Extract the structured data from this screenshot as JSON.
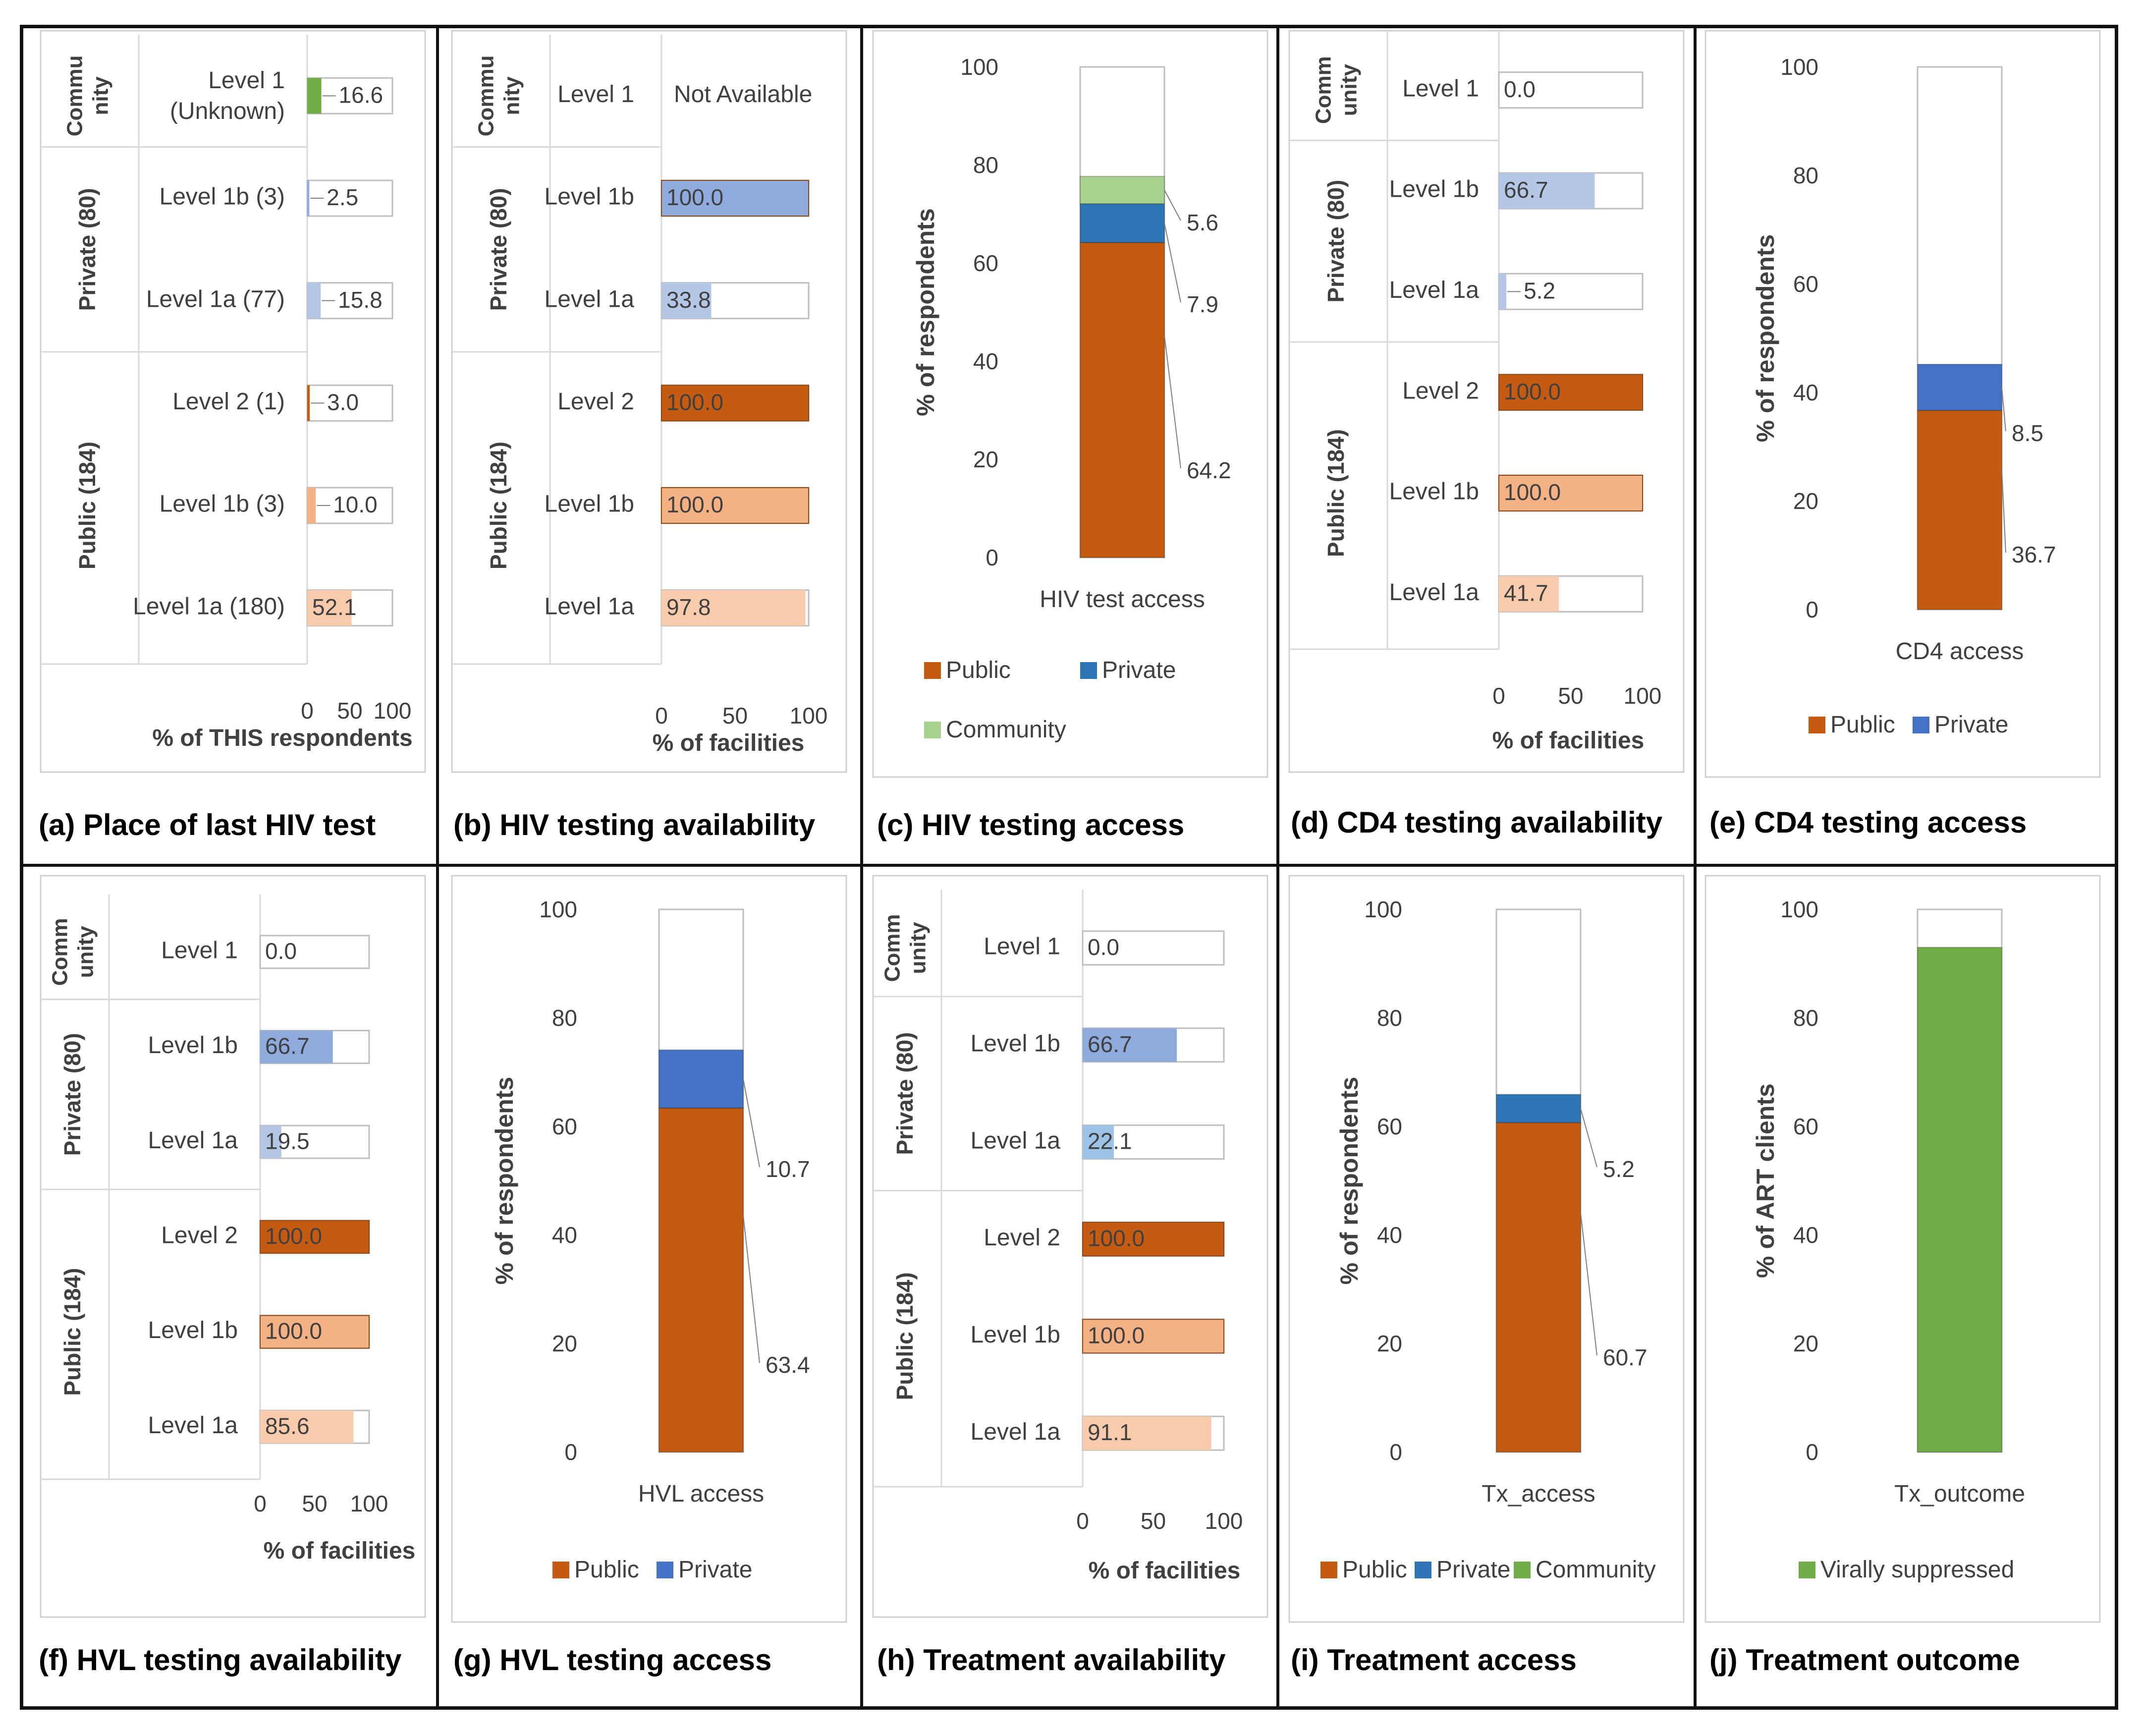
{
  "colors": {
    "public_dark": "#C55A11",
    "public_mid": "#F4B183",
    "public_light": "#F8CBAD",
    "private_dark": "#4472C4",
    "private_mid": "#8FAADC",
    "private_light": "#B4C7E7",
    "community": "#70AD47",
    "community_light": "#A9D18E",
    "tx_public": "#C55A11",
    "tx_private": "#2E75B6"
  },
  "chart_data": [
    {
      "id": "a",
      "type": "bar",
      "orientation": "horizontal",
      "caption": "(a) Place of last HIV test",
      "xlabel": "% of THIS respondents",
      "xticks": [
        "0",
        "50",
        "100"
      ],
      "xlim": [
        0,
        100
      ],
      "groups": [
        {
          "name": "Commu\nnity",
          "lines": [
            "Commu",
            "nity"
          ],
          "rows": [
            {
              "label": "Level 1",
              "label2": "(Unknown)",
              "value": 16.6,
              "label_text": "16.6",
              "color": "#70AD47"
            }
          ]
        },
        {
          "name": "Private (80)",
          "rows": [
            {
              "label": "Level 1b (3)",
              "value": 2.5,
              "label_text": "2.5",
              "color": "#8FAADC"
            },
            {
              "label": "Level 1a (77)",
              "value": 15.8,
              "label_text": "15.8",
              "color": "#B4C7E7"
            }
          ]
        },
        {
          "name": "Public (184)",
          "rows": [
            {
              "label": "Level 2 (1)",
              "value": 3.0,
              "label_text": "3.0",
              "color": "#C55A11"
            },
            {
              "label": "Level 1b (3)",
              "value": 10.0,
              "label_text": "10.0",
              "color": "#F4B183"
            },
            {
              "label": "Level 1a (180)",
              "value": 52.1,
              "label_text": "52.1",
              "color": "#F8CBAD"
            }
          ]
        }
      ]
    },
    {
      "id": "b",
      "type": "bar",
      "orientation": "horizontal",
      "caption": "(b) HIV testing availability",
      "xlabel": "% of facilities",
      "xticks": [
        "0",
        "50",
        "100"
      ],
      "xlim": [
        0,
        100
      ],
      "groups": [
        {
          "name": "Commu\nnity",
          "lines": [
            "Commu",
            "nity"
          ],
          "rows": [
            {
              "label": "Level 1",
              "value": null,
              "label_text": "Not Available",
              "color": "#70AD47"
            }
          ]
        },
        {
          "name": "Private (80)",
          "rows": [
            {
              "label": "Level 1b",
              "value": 100.0,
              "label_text": "100.0",
              "color": "#8FAADC"
            },
            {
              "label": "Level 1a",
              "value": 33.8,
              "label_text": "33.8",
              "color": "#B4C7E7"
            }
          ]
        },
        {
          "name": "Public (184)",
          "rows": [
            {
              "label": "Level 2",
              "value": 100.0,
              "label_text": "100.0",
              "color": "#C55A11"
            },
            {
              "label": "Level 1b",
              "value": 100.0,
              "label_text": "100.0",
              "color": "#F4B183"
            },
            {
              "label": "Level 1a",
              "value": 97.8,
              "label_text": "97.8",
              "color": "#F8CBAD"
            }
          ]
        }
      ]
    },
    {
      "id": "c",
      "type": "bar",
      "orientation": "stacked-vertical",
      "caption": "(c) HIV testing access",
      "ylabel": "% of respondents",
      "xlabel": "HIV test access",
      "ylim": [
        0,
        100
      ],
      "yticks": [
        "0",
        "20",
        "40",
        "60",
        "80",
        "100"
      ],
      "series": [
        {
          "name": "Public",
          "value": 64.2,
          "label_text": "64.2",
          "color": "#C55A11"
        },
        {
          "name": "Private",
          "value": 7.9,
          "label_text": "7.9",
          "color": "#2E75B6"
        },
        {
          "name": "Community",
          "value": 5.6,
          "label_text": "5.6",
          "color": "#A9D18E"
        }
      ],
      "legend": [
        "Public",
        "Private",
        "Community"
      ]
    },
    {
      "id": "d",
      "type": "bar",
      "orientation": "horizontal",
      "caption": "(d) CD4 testing availability",
      "xlabel": "% of facilities",
      "xticks": [
        "0",
        "50",
        "100"
      ],
      "xlim": [
        0,
        100
      ],
      "groups": [
        {
          "name": "Comm\nunity",
          "lines": [
            "Comm",
            "unity"
          ],
          "rows": [
            {
              "label": "Level 1",
              "value": 0.0,
              "label_text": "0.0",
              "color": "#70AD47"
            }
          ]
        },
        {
          "name": "Private (80)",
          "rows": [
            {
              "label": "Level 1b",
              "value": 66.7,
              "label_text": "66.7",
              "color": "#B4C7E7"
            },
            {
              "label": "Level 1a",
              "value": 5.2,
              "label_text": "5.2",
              "color": "#B4C7E7"
            }
          ]
        },
        {
          "name": "Public (184)",
          "rows": [
            {
              "label": "Level 2",
              "value": 100.0,
              "label_text": "100.0",
              "color": "#C55A11"
            },
            {
              "label": "Level 1b",
              "value": 100.0,
              "label_text": "100.0",
              "color": "#F4B183"
            },
            {
              "label": "Level 1a",
              "value": 41.7,
              "label_text": "41.7",
              "color": "#F8CBAD"
            }
          ]
        }
      ]
    },
    {
      "id": "e",
      "type": "bar",
      "orientation": "stacked-vertical",
      "caption": "(e) CD4 testing access",
      "ylabel": "% of respondents",
      "xlabel": "CD4 access",
      "ylim": [
        0,
        100
      ],
      "yticks": [
        "0",
        "20",
        "40",
        "60",
        "80",
        "100"
      ],
      "series": [
        {
          "name": "Public",
          "value": 36.7,
          "label_text": "36.7",
          "color": "#C55A11"
        },
        {
          "name": "Private",
          "value": 8.5,
          "label_text": "8.5",
          "color": "#4472C4"
        }
      ],
      "legend": [
        "Public",
        "Private"
      ]
    },
    {
      "id": "f",
      "type": "bar",
      "orientation": "horizontal",
      "caption": "(f) HVL testing availability",
      "xlabel": "% of facilities",
      "xticks": [
        "0",
        "50",
        "100"
      ],
      "xlim": [
        0,
        100
      ],
      "groups": [
        {
          "name": "Comm\nunity",
          "lines": [
            "Comm",
            "unity"
          ],
          "rows": [
            {
              "label": "Level 1",
              "value": 0.0,
              "label_text": "0.0",
              "color": "#70AD47"
            }
          ]
        },
        {
          "name": "Private (80)",
          "rows": [
            {
              "label": "Level 1b",
              "value": 66.7,
              "label_text": "66.7",
              "color": "#8FAADC"
            },
            {
              "label": "Level 1a",
              "value": 19.5,
              "label_text": "19.5",
              "color": "#B4C7E7"
            }
          ]
        },
        {
          "name": "Public (184)",
          "rows": [
            {
              "label": "Level 2",
              "value": 100.0,
              "label_text": "100.0",
              "color": "#C55A11"
            },
            {
              "label": "Level 1b",
              "value": 100.0,
              "label_text": "100.0",
              "color": "#F4B183"
            },
            {
              "label": "Level 1a",
              "value": 85.6,
              "label_text": "85.6",
              "color": "#F8CBAD"
            }
          ]
        }
      ]
    },
    {
      "id": "g",
      "type": "bar",
      "orientation": "stacked-vertical",
      "caption": "(g) HVL testing access",
      "ylabel": "% of respondents",
      "xlabel": "HVL access",
      "ylim": [
        0,
        100
      ],
      "yticks": [
        "0",
        "20",
        "40",
        "60",
        "80",
        "100"
      ],
      "series": [
        {
          "name": "Public",
          "value": 63.4,
          "label_text": "63.4",
          "color": "#C55A11"
        },
        {
          "name": "Private",
          "value": 10.7,
          "label_text": "10.7",
          "color": "#4472C4"
        }
      ],
      "legend": [
        "Public",
        "Private"
      ]
    },
    {
      "id": "h",
      "type": "bar",
      "orientation": "horizontal",
      "caption": "(h) Treatment availability",
      "xlabel": "% of facilities",
      "xticks": [
        "0",
        "50",
        "100"
      ],
      "xlim": [
        0,
        100
      ],
      "groups": [
        {
          "name": "Comm\nunity",
          "lines": [
            "Comm",
            "unity"
          ],
          "rows": [
            {
              "label": "Level 1",
              "value": 0.0,
              "label_text": "0.0",
              "color": "#70AD47"
            }
          ]
        },
        {
          "name": "Private (80)",
          "rows": [
            {
              "label": "Level 1b",
              "value": 66.7,
              "label_text": "66.7",
              "color": "#8FAADC"
            },
            {
              "label": "Level 1a",
              "value": 22.1,
              "label_text": "22.1",
              "color": "#9DC3E6"
            }
          ]
        },
        {
          "name": "Public (184)",
          "rows": [
            {
              "label": "Level 2",
              "value": 100.0,
              "label_text": "100.0",
              "color": "#C55A11"
            },
            {
              "label": "Level 1b",
              "value": 100.0,
              "label_text": "100.0",
              "color": "#F4B183"
            },
            {
              "label": "Level 1a",
              "value": 91.1,
              "label_text": "91.1",
              "color": "#F8CBAD"
            }
          ]
        }
      ]
    },
    {
      "id": "i",
      "type": "bar",
      "orientation": "stacked-vertical",
      "caption": "(i) Treatment access",
      "ylabel": "% of respondents",
      "xlabel": "Tx_access",
      "ylim": [
        0,
        100
      ],
      "yticks": [
        "0",
        "20",
        "40",
        "60",
        "80",
        "100"
      ],
      "series": [
        {
          "name": "Public",
          "value": 60.7,
          "label_text": "60.7",
          "color": "#C55A11"
        },
        {
          "name": "Private",
          "value": 5.2,
          "label_text": "5.2",
          "color": "#2E75B6"
        },
        {
          "name": "Community",
          "value": 0.0,
          "label_text": "",
          "color": "#70AD47"
        }
      ],
      "legend": [
        "Public",
        "Private",
        "Community"
      ]
    },
    {
      "id": "j",
      "type": "bar",
      "orientation": "stacked-vertical",
      "caption": "(j) Treatment outcome",
      "ylabel": "% of ART clients",
      "xlabel": "Tx_outcome",
      "ylim": [
        0,
        100
      ],
      "yticks": [
        "0",
        "20",
        "40",
        "60",
        "80",
        "100"
      ],
      "series": [
        {
          "name": "Virally suppressed",
          "value": 93.0,
          "label_text": "",
          "color": "#70AD47"
        }
      ],
      "legend": [
        "Virally suppressed"
      ]
    }
  ]
}
